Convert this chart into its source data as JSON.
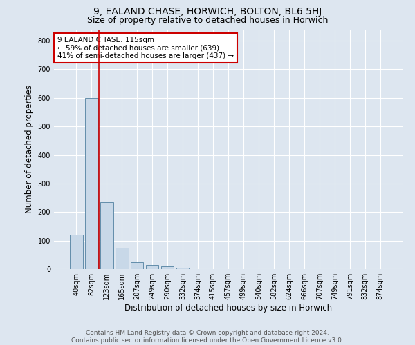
{
  "title": "9, EALAND CHASE, HORWICH, BOLTON, BL6 5HJ",
  "subtitle": "Size of property relative to detached houses in Horwich",
  "xlabel": "Distribution of detached houses by size in Horwich",
  "ylabel": "Number of detached properties",
  "bar_labels": [
    "40sqm",
    "82sqm",
    "123sqm",
    "165sqm",
    "207sqm",
    "249sqm",
    "290sqm",
    "332sqm",
    "374sqm",
    "415sqm",
    "457sqm",
    "499sqm",
    "540sqm",
    "582sqm",
    "624sqm",
    "666sqm",
    "707sqm",
    "749sqm",
    "791sqm",
    "832sqm",
    "874sqm"
  ],
  "bar_values": [
    120,
    600,
    235,
    75,
    25,
    15,
    10,
    5,
    0,
    0,
    0,
    0,
    0,
    0,
    0,
    0,
    0,
    0,
    0,
    0,
    0
  ],
  "bar_color": "#c8d8e8",
  "bar_edge_color": "#5080a0",
  "background_color": "#dde6f0",
  "plot_bg_color": "#dde6f0",
  "grid_color": "#ffffff",
  "vline_x_index": 2,
  "vline_color": "#cc0000",
  "annotation_text": "9 EALAND CHASE: 115sqm\n← 59% of detached houses are smaller (639)\n41% of semi-detached houses are larger (437) →",
  "annotation_box_color": "#ffffff",
  "annotation_box_edge": "#cc0000",
  "ylim": [
    0,
    840
  ],
  "yticks": [
    0,
    100,
    200,
    300,
    400,
    500,
    600,
    700,
    800
  ],
  "footer_line1": "Contains HM Land Registry data © Crown copyright and database right 2024.",
  "footer_line2": "Contains public sector information licensed under the Open Government Licence v3.0.",
  "title_fontsize": 10,
  "subtitle_fontsize": 9,
  "axis_label_fontsize": 8.5,
  "tick_fontsize": 7,
  "annotation_fontsize": 7.5,
  "footer_fontsize": 6.5
}
